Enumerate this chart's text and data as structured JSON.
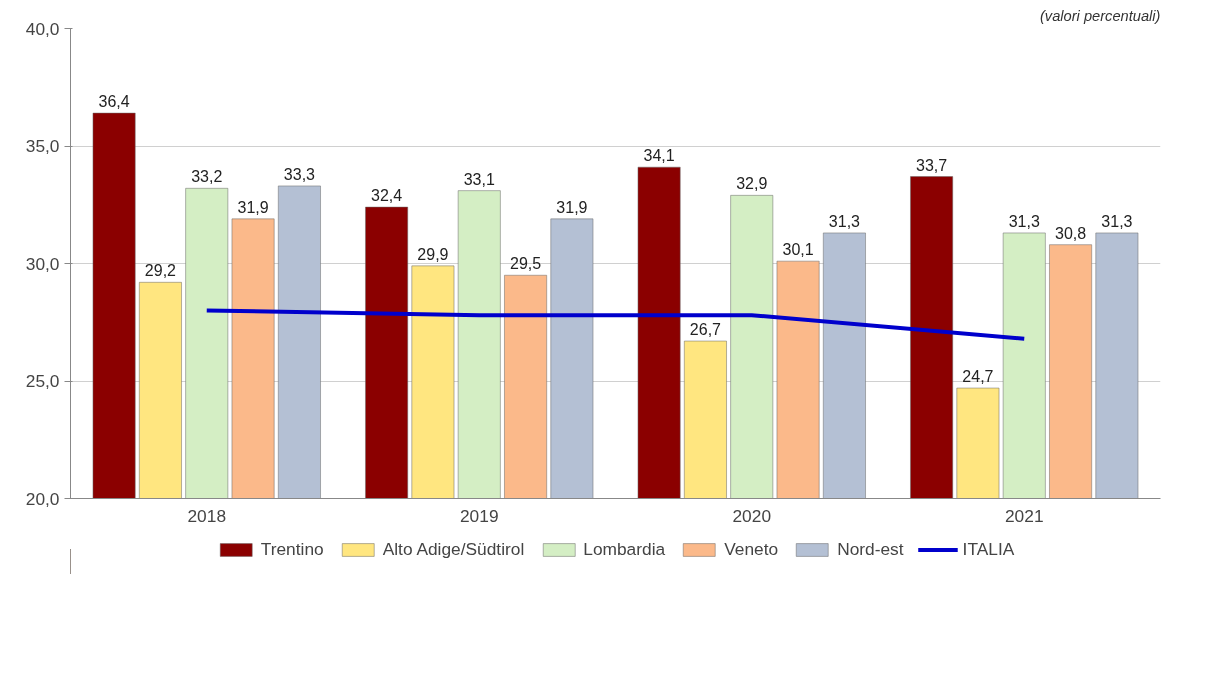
{
  "chart_data": {
    "type": "bar",
    "categories": [
      "2018",
      "2019",
      "2020",
      "2021"
    ],
    "annotations": [
      "(valori percentuali)"
    ],
    "series": [
      {
        "name": "Trentino",
        "color": "#8b0000",
        "values": [
          36.4,
          32.4,
          34.1,
          33.7
        ],
        "value_labels": [
          "36,4",
          "32,4",
          "34,1",
          "33,7"
        ]
      },
      {
        "name": "Alto Adige/Südtirol",
        "color": "#ffe680",
        "values": [
          29.2,
          29.9,
          26.7,
          24.7
        ],
        "value_labels": [
          "29,2",
          "29,9",
          "26,7",
          "24,7"
        ]
      },
      {
        "name": "Lombardia",
        "color": "#d4eec4",
        "values": [
          33.2,
          33.1,
          32.9,
          31.3
        ],
        "value_labels": [
          "33,2",
          "33,1",
          "32,9",
          "31,3"
        ]
      },
      {
        "name": "Veneto",
        "color": "#fbb98a",
        "values": [
          31.9,
          29.5,
          30.1,
          30.8
        ],
        "value_labels": [
          "31,9",
          "29,5",
          "30,1",
          "30,8"
        ]
      },
      {
        "name": "Nord-est",
        "color": "#b4c0d4",
        "values": [
          33.3,
          31.9,
          31.3,
          31.3
        ],
        "value_labels": [
          "33,3",
          "31,9",
          "31,3",
          "31,3"
        ]
      },
      {
        "name": "ITALIA",
        "color": "#0000cc",
        "type": "line",
        "values": [
          28.0,
          27.8,
          27.8,
          26.8
        ]
      }
    ],
    "ylim": [
      20,
      40
    ],
    "yticks": [
      {
        "value": 20,
        "label": "20,0"
      },
      {
        "value": 25,
        "label": "25,0"
      },
      {
        "value": 30,
        "label": "30,0"
      },
      {
        "value": 35,
        "label": "35,0"
      },
      {
        "value": 40,
        "label": "40,0"
      }
    ],
    "grid": "y",
    "legend": "bottom"
  }
}
